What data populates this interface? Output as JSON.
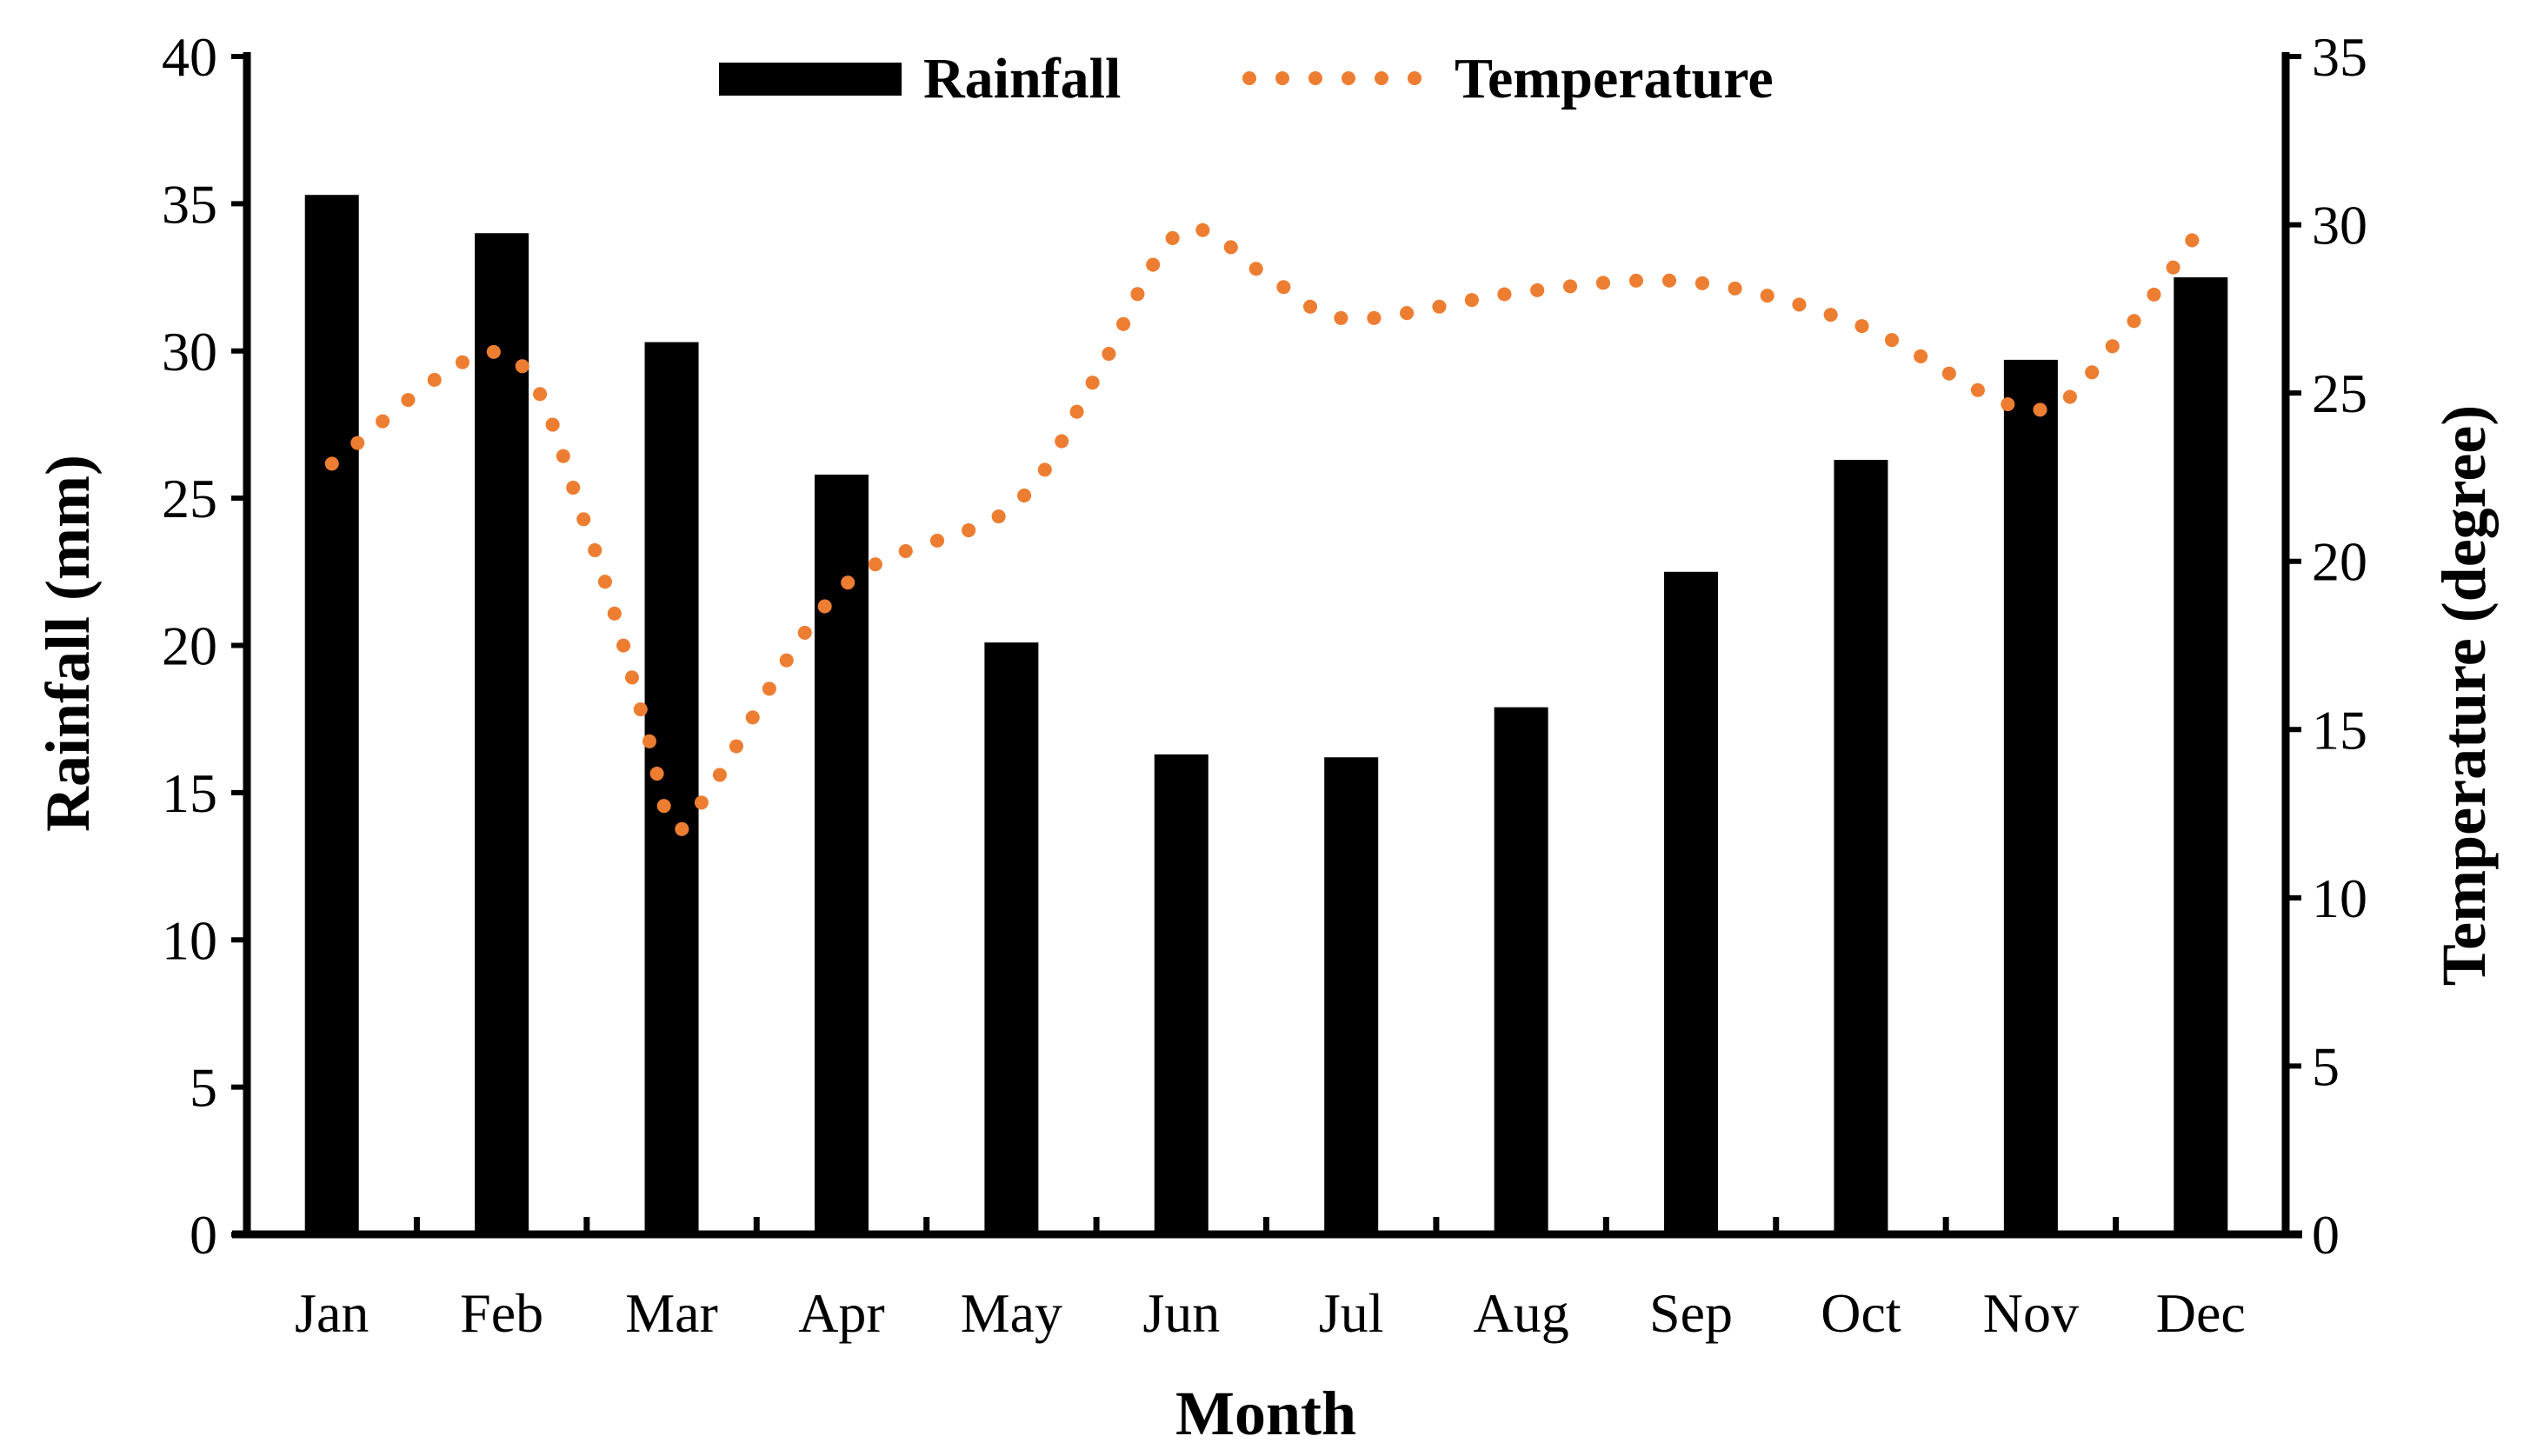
{
  "chart_data": {
    "type": "bar",
    "categories": [
      "Jan",
      "Feb",
      "Mar",
      "Apr",
      "May",
      "Jun",
      "Jul",
      "Aug",
      "Sep",
      "Oct",
      "Nov",
      "Dec"
    ],
    "series": [
      {
        "name": "Rainfall",
        "type": "bar",
        "axis": "left",
        "color": "#000000",
        "values": [
          35.3,
          34.0,
          30.3,
          25.8,
          20.1,
          16.3,
          16.2,
          17.9,
          22.5,
          26.3,
          29.7,
          32.5
        ]
      },
      {
        "name": "Temperature",
        "type": "line",
        "style": "dotted",
        "axis": "right",
        "color": "#ED7D31",
        "points": [
          {
            "x": 0.0,
            "y": 22.9
          },
          {
            "x": 1.0,
            "y": 26.2
          },
          {
            "x": 1.5,
            "y": 21.0
          },
          {
            "x": 1.85,
            "y": 15.0
          },
          {
            "x": 2.0,
            "y": 12.2
          },
          {
            "x": 2.2,
            "y": 13.0
          },
          {
            "x": 3.0,
            "y": 19.2
          },
          {
            "x": 4.0,
            "y": 21.6
          },
          {
            "x": 4.5,
            "y": 25.5
          },
          {
            "x": 5.0,
            "y": 29.8
          },
          {
            "x": 5.55,
            "y": 28.3
          },
          {
            "x": 6.0,
            "y": 27.2
          },
          {
            "x": 7.0,
            "y": 28.0
          },
          {
            "x": 8.0,
            "y": 28.3
          },
          {
            "x": 9.0,
            "y": 27.0
          },
          {
            "x": 10.0,
            "y": 24.5
          },
          {
            "x": 10.5,
            "y": 26.5
          },
          {
            "x": 11.0,
            "y": 29.9
          }
        ]
      }
    ],
    "xlabel": "Month",
    "ylabel": "Rainfall (mm)",
    "y2label": "Temperature (degree)",
    "ylim": [
      0,
      40
    ],
    "y2lim": [
      0,
      35
    ],
    "yticks": [
      0,
      5,
      10,
      15,
      20,
      25,
      30,
      35,
      40
    ],
    "y2ticks": [
      0,
      5,
      10,
      15,
      20,
      25,
      30,
      35
    ],
    "grid": false,
    "legend": "top-center"
  }
}
